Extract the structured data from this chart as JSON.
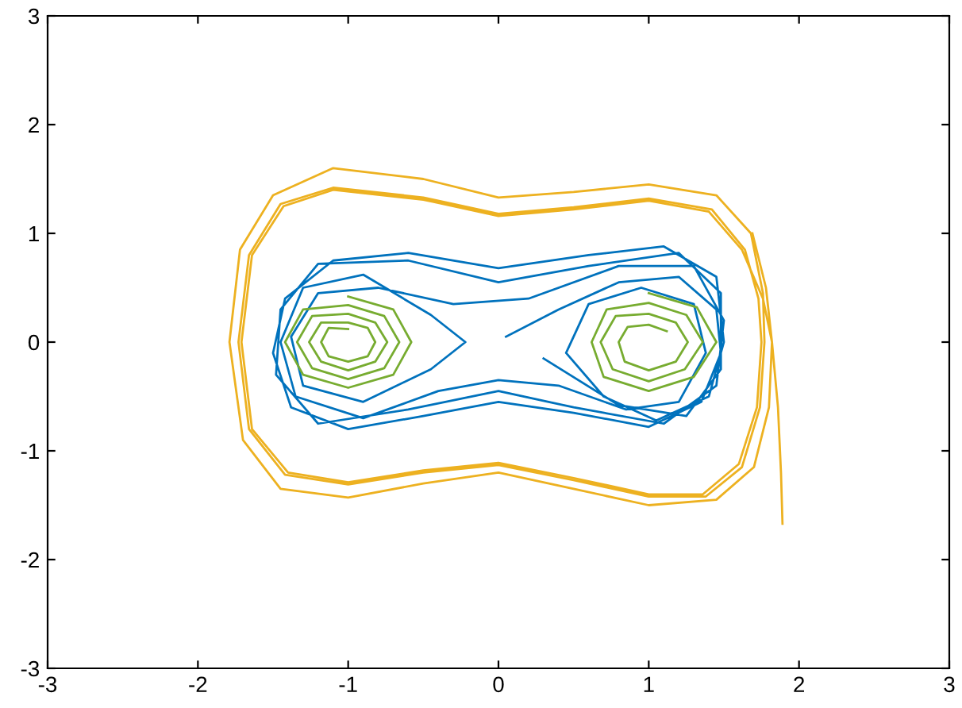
{
  "chart_data": {
    "type": "line",
    "xlim": [
      -3,
      3
    ],
    "ylim": [
      -3,
      3
    ],
    "xticks": [
      -3,
      -2,
      -1,
      0,
      1,
      2,
      3
    ],
    "yticks": [
      -3,
      -2,
      -1,
      0,
      1,
      2,
      3
    ],
    "grid": false,
    "series": [
      {
        "color": "#edb120",
        "x": [
          1.69,
          1.78,
          1.82,
          1.8,
          1.7,
          1.45,
          1.0,
          0.5,
          0,
          -0.5,
          -1.0,
          -1.45,
          -1.7,
          -1.79,
          -1.72,
          -1.5,
          -1.1,
          -0.5,
          0,
          0.5,
          1.0,
          1.45,
          1.68,
          1.76,
          1.77,
          1.74,
          1.62,
          1.38,
          1.0,
          0.5,
          0,
          -0.5,
          -1.0,
          -1.42,
          -1.66,
          -1.73,
          -1.66,
          -1.45,
          -1.1,
          -0.5,
          0,
          0.5,
          1.0,
          1.42,
          1.64,
          1.73,
          1.75,
          1.72,
          1.6,
          1.36,
          1.0,
          0.5,
          0,
          -0.5,
          -1.0,
          -1.4,
          -1.64,
          -1.71,
          -1.64,
          -1.43,
          -1.1,
          -0.5,
          0,
          0.5,
          1.0,
          1.4,
          1.62,
          1.76,
          1.82,
          1.86,
          1.88,
          1.89
        ],
        "values": [
          1.0,
          0.5,
          0,
          -0.6,
          -1.15,
          -1.45,
          -1.5,
          -1.35,
          -1.2,
          -1.3,
          -1.43,
          -1.35,
          -0.9,
          0,
          0.85,
          1.35,
          1.6,
          1.5,
          1.33,
          1.38,
          1.45,
          1.35,
          1.0,
          0.45,
          0,
          -0.6,
          -1.15,
          -1.42,
          -1.42,
          -1.27,
          -1.13,
          -1.2,
          -1.31,
          -1.22,
          -0.8,
          0,
          0.8,
          1.27,
          1.42,
          1.33,
          1.18,
          1.24,
          1.32,
          1.22,
          0.85,
          0.4,
          0,
          -0.6,
          -1.12,
          -1.4,
          -1.4,
          -1.25,
          -1.11,
          -1.18,
          -1.29,
          -1.2,
          -0.8,
          0,
          0.8,
          1.25,
          1.4,
          1.31,
          1.16,
          1.22,
          1.3,
          1.2,
          0.85,
          0.4,
          0,
          -0.6,
          -1.2,
          -1.67
        ]
      },
      {
        "color": "#0072bd",
        "x": [
          0.05,
          0.4,
          0.8,
          1.2,
          1.45,
          1.48,
          1.35,
          1.0,
          0.5,
          0,
          -0.5,
          -1.0,
          -1.38,
          -1.5,
          -1.42,
          -1.1,
          -0.6,
          0,
          0.6,
          1.1,
          1.45,
          1.5,
          1.4,
          1.05,
          0.7,
          0.45,
          0.6,
          0.95,
          1.3,
          1.38,
          1.2,
          0.85,
          0.4,
          0,
          -0.4,
          -0.9,
          -1.35,
          -1.45,
          -1.3,
          -0.9,
          -0.45,
          -0.22,
          -0.45,
          -0.9,
          -1.3,
          -1.38,
          -1.2,
          -0.8,
          -0.3,
          0.2,
          0.8,
          1.3,
          1.5,
          1.45,
          1.1,
          0.5,
          0,
          -0.6,
          -1.2,
          -1.48,
          -1.45,
          -1.2,
          -0.6,
          0,
          0.6,
          1.2,
          1.48,
          1.48,
          1.25,
          0.8,
          0.3
        ],
        "values": [
          0.05,
          0.3,
          0.55,
          0.6,
          0.3,
          -0.1,
          -0.55,
          -0.78,
          -0.65,
          -0.55,
          -0.68,
          -0.8,
          -0.6,
          -0.1,
          0.4,
          0.75,
          0.82,
          0.68,
          0.8,
          0.88,
          0.6,
          0,
          -0.5,
          -0.72,
          -0.5,
          -0.1,
          0.35,
          0.5,
          0.35,
          -0.1,
          -0.55,
          -0.62,
          -0.4,
          -0.35,
          -0.45,
          -0.7,
          -0.5,
          0,
          0.5,
          0.62,
          0.25,
          0,
          -0.25,
          -0.55,
          -0.4,
          0.05,
          0.45,
          0.5,
          0.35,
          0.4,
          0.7,
          0.7,
          0.2,
          -0.4,
          -0.75,
          -0.6,
          -0.45,
          -0.62,
          -0.75,
          -0.3,
          0.3,
          0.72,
          0.75,
          0.55,
          0.7,
          0.82,
          0.45,
          -0.25,
          -0.68,
          -0.58,
          -0.15
        ]
      },
      {
        "color": "#77ac30",
        "x": [
          -1,
          -0.7,
          -0.58,
          -0.7,
          -1,
          -1.3,
          -1.42,
          -1.3,
          -1,
          -0.76,
          -0.66,
          -0.76,
          -1,
          -1.24,
          -1.34,
          -1.24,
          -1,
          -0.82,
          -0.74,
          -0.82,
          -1,
          -1.18,
          -1.26,
          -1.18,
          -1,
          -0.87,
          -0.82,
          -0.87,
          -1,
          -1.13,
          -1.18,
          -1.13,
          -1,
          0.72,
          1,
          1.32,
          1.45,
          1.3,
          1,
          0.7,
          0.62,
          0.72,
          1,
          1.25,
          1.36,
          1.24,
          1,
          0.76,
          0.68,
          0.78,
          1,
          1.18,
          1.26,
          1.18,
          1,
          0.84,
          0.8,
          0.86,
          1,
          1.12
        ],
        "values": [
          0.42,
          0.3,
          0,
          -0.3,
          -0.42,
          -0.3,
          0,
          0.3,
          0.34,
          0.24,
          0,
          -0.24,
          -0.34,
          -0.24,
          0,
          0.24,
          0.26,
          0.18,
          0,
          -0.18,
          -0.26,
          -0.18,
          0,
          0.18,
          0.18,
          0.13,
          0,
          -0.13,
          -0.18,
          -0.13,
          0,
          0.13,
          0.12,
          null,
          0.45,
          0.32,
          0,
          -0.32,
          -0.45,
          -0.32,
          0,
          0.3,
          0.36,
          0.25,
          0,
          -0.25,
          -0.36,
          -0.25,
          0,
          0.24,
          0.26,
          0.18,
          0,
          -0.18,
          -0.26,
          -0.18,
          0,
          0.14,
          0.16,
          0.1
        ]
      }
    ]
  }
}
